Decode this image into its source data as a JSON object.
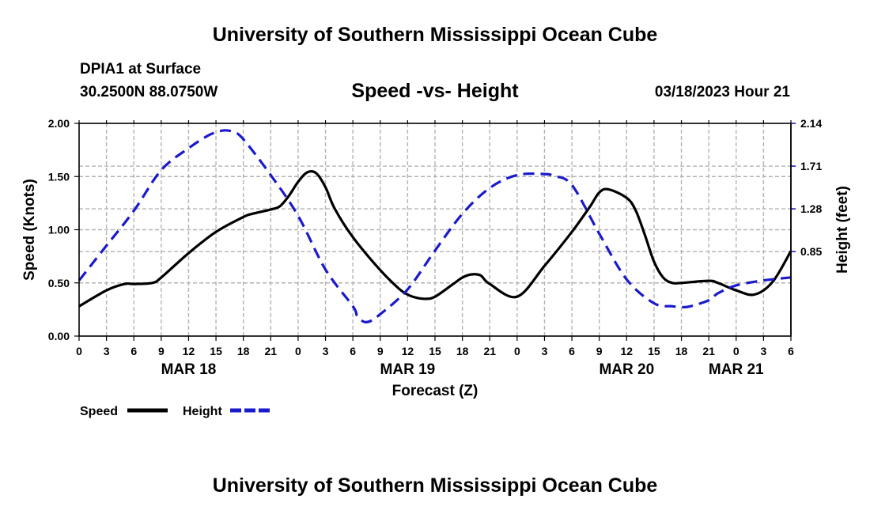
{
  "header": {
    "title": "University of Southern Mississippi Ocean Cube",
    "station": "DPIA1 at Surface",
    "coords": "30.2500N  88.0750W",
    "timestamp": "03/18/2023 Hour 21"
  },
  "footer": {
    "title": "University of Southern Mississippi Ocean Cube"
  },
  "chart_data": {
    "type": "line",
    "title": "Speed -vs- Height",
    "xlabel": "Forecast (Z)",
    "ylabel": "Speed (Knots)",
    "y2label": "Height (feet)",
    "grid": true,
    "x_range_hours": [
      0,
      78
    ],
    "ylim": [
      0,
      2.0
    ],
    "y2lim": [
      0,
      2.14
    ],
    "yticks": [
      "0.00",
      "0.50",
      "1.00",
      "1.50",
      "2.00"
    ],
    "ytick_values": [
      0,
      0.5,
      1.0,
      1.5,
      2.0
    ],
    "y2ticks": [
      "0.85",
      "1.28",
      "1.71",
      "2.14"
    ],
    "y2tick_values": [
      0.85,
      1.28,
      1.71,
      2.14
    ],
    "xtick_labels": [
      "0",
      "3",
      "6",
      "9",
      "12",
      "15",
      "18",
      "21",
      "0",
      "3",
      "6",
      "9",
      "12",
      "15",
      "18",
      "21",
      "0",
      "3",
      "6",
      "9",
      "12",
      "15",
      "18",
      "21",
      "0",
      "3",
      "6"
    ],
    "day_labels": [
      {
        "label": "MAR 18",
        "hour": 12
      },
      {
        "label": "MAR 19",
        "hour": 36
      },
      {
        "label": "MAR 20",
        "hour": 60
      },
      {
        "label": "MAR 21",
        "hour": 72
      }
    ],
    "series": [
      {
        "name": "Speed",
        "axis": "left",
        "color": "#000000",
        "style": "solid",
        "x": [
          0,
          3,
          5,
          6,
          8,
          9,
          12,
          15,
          18,
          19,
          21,
          22,
          23,
          24,
          25,
          26,
          27,
          28,
          30,
          33,
          35,
          36,
          37,
          38,
          39,
          41,
          42,
          43,
          44,
          45,
          48,
          51,
          54,
          56,
          57,
          58,
          60,
          61,
          62,
          63,
          64,
          65,
          66,
          69,
          70,
          72,
          74,
          76,
          78
        ],
        "values": [
          0.28,
          0.43,
          0.49,
          0.49,
          0.5,
          0.55,
          0.78,
          0.98,
          1.12,
          1.15,
          1.19,
          1.22,
          1.32,
          1.45,
          1.54,
          1.53,
          1.4,
          1.2,
          0.93,
          0.62,
          0.45,
          0.39,
          0.36,
          0.35,
          0.37,
          0.49,
          0.55,
          0.58,
          0.57,
          0.49,
          0.37,
          0.66,
          0.98,
          1.22,
          1.35,
          1.38,
          1.3,
          1.18,
          0.95,
          0.7,
          0.55,
          0.5,
          0.5,
          0.52,
          0.5,
          0.43,
          0.39,
          0.51,
          0.8
        ]
      },
      {
        "name": "Height",
        "axis": "right",
        "color": "#1a1acc",
        "style": "dashed",
        "x": [
          0,
          3,
          6,
          9,
          12,
          14,
          15,
          16,
          17,
          18,
          21,
          24,
          27,
          30,
          30.5,
          31.5,
          33,
          36,
          39,
          42,
          45,
          48,
          51,
          52,
          54,
          57,
          60,
          63,
          65,
          66,
          67,
          69,
          70,
          72,
          75,
          78
        ],
        "values": [
          0.56,
          0.91,
          1.26,
          1.67,
          1.89,
          2.01,
          2.05,
          2.07,
          2.05,
          1.98,
          1.62,
          1.21,
          0.67,
          0.3,
          0.2,
          0.14,
          0.22,
          0.47,
          0.86,
          1.23,
          1.49,
          1.62,
          1.63,
          1.61,
          1.52,
          1.03,
          0.57,
          0.33,
          0.3,
          0.29,
          0.3,
          0.36,
          0.43,
          0.51,
          0.56,
          0.59
        ]
      }
    ],
    "legend": [
      "Speed",
      "Height"
    ],
    "legend_position": "bottom-left"
  }
}
